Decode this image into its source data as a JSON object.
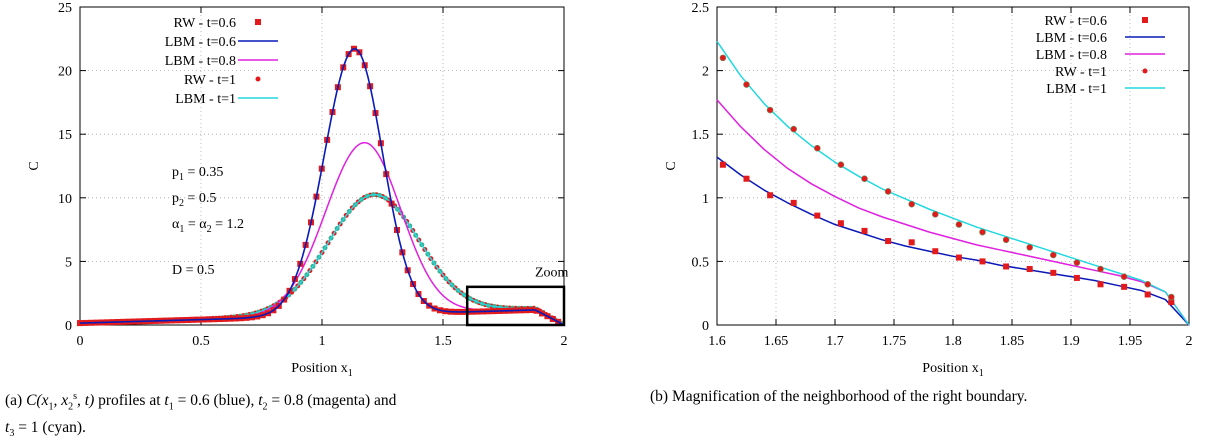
{
  "chart_data": [
    {
      "type": "line",
      "xlabel": "Position x",
      "xlabel_sub": "1",
      "ylabel": "C",
      "xlim": [
        0,
        2
      ],
      "ylim": [
        0,
        25
      ],
      "xticks": [
        "0",
        "0.5",
        "1",
        "1.5",
        "2"
      ],
      "yticks": [
        "0",
        "5",
        "10",
        "15",
        "20",
        "25"
      ],
      "grid": true,
      "legend_position": "top-left",
      "legend": [
        {
          "label": "RW - t=0.6",
          "style": "square",
          "color": "#e31a1c"
        },
        {
          "label": "LBM - t=0.6",
          "style": "line",
          "color": "#0a1ab8"
        },
        {
          "label": "LBM - t=0.8",
          "style": "line",
          "color": "#e020e0"
        },
        {
          "label": "RW - t=1",
          "style": "dot",
          "color": "#e31a1c"
        },
        {
          "label": "LBM - t=1",
          "style": "line",
          "color": "#22d8e0"
        }
      ],
      "annotations": [
        {
          "text": "p",
          "sub": "1",
          "rest": " = 0.35"
        },
        {
          "text": "p",
          "sub": "2",
          "rest": " = 0.5"
        },
        {
          "text": "α",
          "sub": "1",
          "rest": " = α",
          "sub2": "2",
          "rest2": " = 1.2"
        },
        {
          "text": "D = 0.5",
          "sub": "",
          "rest": ""
        }
      ],
      "zoom_label": "Zoom",
      "zoom_box": {
        "x": [
          1.6,
          2.0
        ],
        "y": [
          0,
          3
        ]
      },
      "peaks": {
        "t06": {
          "amp": 20.95,
          "center": 1.135,
          "left_width": 0.125,
          "right_width": 0.115
        },
        "t08": {
          "amp": 13.5,
          "center": 1.175,
          "left_width": 0.16,
          "right_width": 0.15
        },
        "t1": {
          "amp": 9.35,
          "center": 1.215,
          "left_width": 0.19,
          "right_width": 0.185
        }
      }
    },
    {
      "type": "line",
      "xlabel": "Position x",
      "xlabel_sub": "1",
      "ylabel": "C",
      "xlim": [
        1.6,
        2.0
      ],
      "ylim": [
        0,
        2.5
      ],
      "xticks": [
        "1.6",
        "1.65",
        "1.7",
        "1.75",
        "1.8",
        "1.85",
        "1.9",
        "1.95",
        "2"
      ],
      "yticks": [
        "0",
        "0.5",
        "1",
        "1.5",
        "2",
        "2.5"
      ],
      "grid": true,
      "legend_position": "top-right",
      "legend": [
        {
          "label": "RW - t=0.6",
          "style": "square",
          "color": "#e31a1c"
        },
        {
          "label": "LBM - t=0.6",
          "style": "line",
          "color": "#0a1ab8"
        },
        {
          "label": "LBM - t=0.8",
          "style": "line",
          "color": "#e020e0"
        },
        {
          "label": "RW - t=1",
          "style": "dot",
          "color": "#e31a1c"
        },
        {
          "label": "LBM - t=1",
          "style": "line",
          "color": "#22d8e0"
        }
      ],
      "series": [
        {
          "name": "LBM - t=0.6",
          "x": [
            1.6,
            1.62,
            1.64,
            1.66,
            1.68,
            1.7,
            1.72,
            1.74,
            1.76,
            1.78,
            1.8,
            1.82,
            1.84,
            1.86,
            1.88,
            1.9,
            1.92,
            1.94,
            1.96,
            1.98,
            2.0
          ],
          "y": [
            1.32,
            1.18,
            1.06,
            0.96,
            0.87,
            0.79,
            0.73,
            0.67,
            0.62,
            0.58,
            0.54,
            0.51,
            0.47,
            0.44,
            0.41,
            0.38,
            0.35,
            0.31,
            0.27,
            0.2,
            0.0
          ]
        },
        {
          "name": "LBM - t=0.8",
          "x": [
            1.6,
            1.62,
            1.64,
            1.66,
            1.68,
            1.7,
            1.72,
            1.74,
            1.76,
            1.78,
            1.8,
            1.82,
            1.84,
            1.86,
            1.88,
            1.9,
            1.92,
            1.94,
            1.96,
            1.98,
            2.0
          ],
          "y": [
            1.77,
            1.56,
            1.38,
            1.23,
            1.11,
            1.01,
            0.92,
            0.85,
            0.79,
            0.73,
            0.68,
            0.63,
            0.59,
            0.55,
            0.51,
            0.47,
            0.43,
            0.39,
            0.34,
            0.26,
            0.0
          ]
        },
        {
          "name": "LBM - t=1",
          "x": [
            1.6,
            1.62,
            1.64,
            1.66,
            1.68,
            1.7,
            1.72,
            1.74,
            1.76,
            1.78,
            1.8,
            1.82,
            1.84,
            1.86,
            1.88,
            1.9,
            1.92,
            1.94,
            1.96,
            1.98,
            2.0
          ],
          "y": [
            2.23,
            1.96,
            1.74,
            1.56,
            1.41,
            1.28,
            1.17,
            1.07,
            0.99,
            0.91,
            0.84,
            0.77,
            0.71,
            0.65,
            0.59,
            0.53,
            0.47,
            0.41,
            0.35,
            0.26,
            0.0
          ]
        },
        {
          "name": "RW - t=0.6",
          "x": [
            1.605,
            1.625,
            1.645,
            1.665,
            1.685,
            1.705,
            1.725,
            1.745,
            1.765,
            1.785,
            1.805,
            1.825,
            1.845,
            1.865,
            1.885,
            1.905,
            1.925,
            1.945,
            1.965,
            1.985
          ],
          "y": [
            1.26,
            1.15,
            1.02,
            0.96,
            0.86,
            0.8,
            0.74,
            0.66,
            0.65,
            0.58,
            0.53,
            0.5,
            0.46,
            0.44,
            0.41,
            0.37,
            0.32,
            0.3,
            0.24,
            0.18
          ]
        },
        {
          "name": "RW - t=1",
          "x": [
            1.605,
            1.625,
            1.645,
            1.665,
            1.685,
            1.705,
            1.725,
            1.745,
            1.765,
            1.785,
            1.805,
            1.825,
            1.845,
            1.865,
            1.885,
            1.905,
            1.925,
            1.945,
            1.965,
            1.985
          ],
          "y": [
            2.1,
            1.89,
            1.69,
            1.54,
            1.39,
            1.26,
            1.15,
            1.05,
            0.95,
            0.87,
            0.79,
            0.73,
            0.67,
            0.61,
            0.55,
            0.49,
            0.44,
            0.38,
            0.32,
            0.22
          ]
        }
      ]
    }
  ],
  "captions": {
    "a": {
      "l1_lead": "(a)",
      "l1_func": "C(x",
      "l1_s1": "1",
      "l1_comma": ", x",
      "l1_s2": "2",
      "l1_sup": "s",
      "l1_rest1": ", t)",
      "l1_rest2": " profiles at ",
      "t1": "t",
      "t1_sub": "1",
      "t1_val": " = 0.6 (blue), ",
      "t2": "t",
      "t2_sub": "2",
      "t2_val": " = 0.8 (magenta) and",
      "t3": "t",
      "t3_sub": "3",
      "t3_val": " = 1 (cyan)."
    },
    "b": {
      "text": "(b) Magnification of the neighborhood of the right boundary."
    }
  }
}
